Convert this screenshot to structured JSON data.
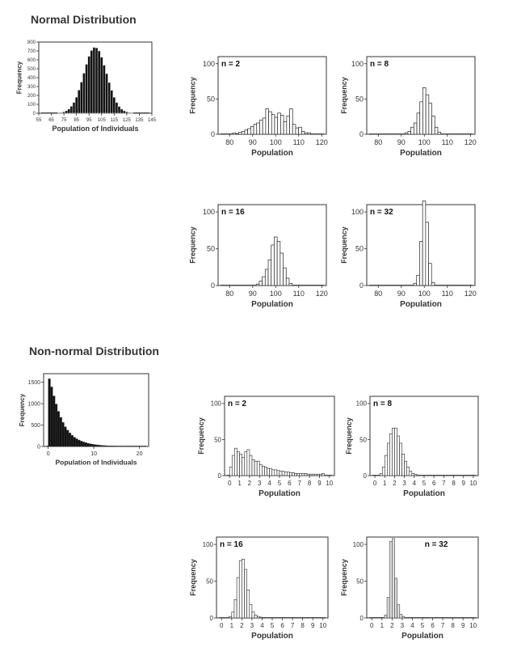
{
  "sections": {
    "normal": {
      "title": "Normal Distribution"
    },
    "nonnormal": {
      "title": "Non-normal Distribution"
    }
  },
  "chart_data": [
    {
      "id": "normal-population",
      "type": "bar",
      "title": "",
      "xlabel": "Population of Individuals",
      "ylabel": "Frequency",
      "xlim": [
        55,
        145
      ],
      "ylim": [
        0,
        800
      ],
      "xticks": [
        55,
        65,
        75,
        85,
        95,
        105,
        115,
        125,
        135,
        145
      ],
      "yticks": [
        0,
        100,
        200,
        300,
        400,
        500,
        600,
        700,
        800
      ],
      "bin_width": 2,
      "x": [
        71,
        73,
        75,
        77,
        79,
        81,
        83,
        85,
        87,
        89,
        91,
        93,
        95,
        97,
        99,
        101,
        103,
        105,
        107,
        109,
        111,
        113,
        115,
        117,
        119,
        121,
        123,
        125,
        127,
        129
      ],
      "values": [
        4,
        8,
        15,
        28,
        48,
        78,
        120,
        180,
        260,
        350,
        450,
        550,
        640,
        705,
        740,
        735,
        700,
        630,
        540,
        445,
        345,
        258,
        180,
        120,
        76,
        46,
        27,
        15,
        8,
        4
      ]
    },
    {
      "id": "normal-n2",
      "type": "bar",
      "title": "n = 2",
      "xlabel": "Population",
      "ylabel": "Frequency",
      "xlim": [
        75,
        122
      ],
      "ylim": [
        0,
        110
      ],
      "xticks": [
        80,
        90,
        100,
        110,
        120
      ],
      "yticks": [
        0,
        50,
        100
      ],
      "bin_width": 1.3,
      "x": [
        82,
        83.3,
        84.6,
        85.9,
        87.2,
        88.5,
        89.8,
        91.1,
        92.4,
        93.7,
        95,
        96.3,
        97.6,
        98.9,
        100.2,
        101.5,
        102.8,
        104.1,
        105.4,
        106.7,
        108,
        109.3,
        110.6,
        111.9,
        113.2,
        114.5
      ],
      "values": [
        2,
        1,
        3,
        4,
        6,
        8,
        11,
        14,
        16,
        20,
        23,
        36,
        32,
        28,
        24,
        30,
        27,
        18,
        26,
        36,
        14,
        9,
        10,
        4,
        2,
        2
      ]
    },
    {
      "id": "normal-n8",
      "type": "bar",
      "title": "n = 8",
      "xlabel": "Population",
      "ylabel": "Frequency",
      "xlim": [
        75,
        122
      ],
      "ylim": [
        0,
        110
      ],
      "xticks": [
        80,
        90,
        100,
        110,
        120
      ],
      "yticks": [
        0,
        50,
        100
      ],
      "bin_width": 1.3,
      "x": [
        92.2,
        93.5,
        94.8,
        96.1,
        97.4,
        98.7,
        100,
        101.3,
        102.6,
        103.9,
        105.2,
        106.5
      ],
      "values": [
        2,
        4,
        10,
        16,
        30,
        46,
        66,
        56,
        44,
        26,
        10,
        3
      ]
    },
    {
      "id": "normal-n16",
      "type": "bar",
      "title": "n = 16",
      "xlabel": "Population",
      "ylabel": "Frequency",
      "xlim": [
        75,
        122
      ],
      "ylim": [
        0,
        110
      ],
      "xticks": [
        80,
        90,
        100,
        110,
        120
      ],
      "yticks": [
        0,
        50,
        100
      ],
      "bin_width": 1.3,
      "x": [
        92.2,
        93.5,
        94.8,
        96.1,
        97.4,
        98.7,
        100,
        101.3,
        102.6,
        103.9,
        105.2,
        106.5
      ],
      "values": [
        2,
        6,
        12,
        22,
        35,
        55,
        66,
        60,
        44,
        24,
        10,
        3
      ]
    },
    {
      "id": "normal-n32",
      "type": "bar",
      "title": "n = 32",
      "xlabel": "Population",
      "ylabel": "Frequency",
      "xlim": [
        75,
        122
      ],
      "ylim": [
        0,
        110
      ],
      "xticks": [
        80,
        90,
        100,
        110,
        120
      ],
      "yticks": [
        0,
        50,
        100
      ],
      "bin_width": 1.3,
      "x": [
        96,
        97.3,
        98.6,
        99.9,
        101.2,
        102.5,
        103.8
      ],
      "values": [
        3,
        14,
        60,
        115,
        86,
        30,
        4
      ]
    },
    {
      "id": "nonnormal-population",
      "type": "bar",
      "title": "",
      "xlabel": "Population of Individuals",
      "ylabel": "Frequency",
      "xlim": [
        -1,
        22
      ],
      "ylim": [
        0,
        1700
      ],
      "xticks": [
        0,
        10,
        20
      ],
      "yticks": [
        0,
        500,
        1000,
        1500
      ],
      "bin_width": 0.5,
      "x": [
        0.25,
        0.75,
        1.25,
        1.75,
        2.25,
        2.75,
        3.25,
        3.75,
        4.25,
        4.75,
        5.25,
        5.75,
        6.25,
        6.75,
        7.25,
        7.75,
        8.25,
        8.75,
        9.25,
        9.75,
        10.25,
        10.75,
        11.25,
        11.75,
        12.25,
        12.75,
        13.25,
        13.75,
        14.25,
        14.75,
        15.25,
        15.75,
        16.25,
        16.75
      ],
      "values": [
        1580,
        1390,
        1180,
        990,
        820,
        680,
        560,
        460,
        380,
        315,
        260,
        215,
        180,
        150,
        125,
        105,
        88,
        74,
        62,
        52,
        44,
        37,
        31,
        26,
        22,
        18,
        15,
        13,
        11,
        9,
        8,
        7,
        6,
        5
      ]
    },
    {
      "id": "nonnormal-n2",
      "type": "bar",
      "title": "n = 2",
      "xlabel": "Population",
      "ylabel": "Frequency",
      "xlim": [
        -0.5,
        10.5
      ],
      "ylim": [
        0,
        110
      ],
      "xticks": [
        0,
        1,
        2,
        3,
        4,
        5,
        6,
        7,
        8,
        9,
        10
      ],
      "yticks": [
        0,
        50,
        100
      ],
      "bin_width": 0.25,
      "x": [
        0.125,
        0.375,
        0.625,
        0.875,
        1.125,
        1.375,
        1.625,
        1.875,
        2.125,
        2.375,
        2.625,
        2.875,
        3.125,
        3.375,
        3.625,
        3.875,
        4.125,
        4.375,
        4.625,
        4.875,
        5.125,
        5.375,
        5.625,
        5.875,
        6.125,
        6.375,
        6.625,
        6.875,
        7.125,
        7.375,
        7.625,
        7.875,
        8.125,
        8.375,
        8.625,
        8.875,
        9.125,
        9.375
      ],
      "values": [
        12,
        28,
        38,
        33,
        30,
        25,
        33,
        36,
        28,
        22,
        20,
        20,
        15,
        13,
        12,
        10,
        10,
        8,
        8,
        7,
        6,
        6,
        5,
        5,
        4,
        4,
        3,
        3,
        3,
        3,
        3,
        2,
        2,
        2,
        2,
        2,
        2,
        3
      ]
    },
    {
      "id": "nonnormal-n8",
      "type": "bar",
      "title": "n = 8",
      "xlabel": "Population",
      "ylabel": "Frequency",
      "xlim": [
        -0.5,
        10.5
      ],
      "ylim": [
        0,
        110
      ],
      "xticks": [
        0,
        1,
        2,
        3,
        4,
        5,
        6,
        7,
        8,
        9,
        10
      ],
      "yticks": [
        0,
        50,
        100
      ],
      "bin_width": 0.25,
      "x": [
        0.625,
        0.875,
        1.125,
        1.375,
        1.625,
        1.875,
        2.125,
        2.375,
        2.625,
        2.875,
        3.125,
        3.375,
        3.625,
        3.875,
        4.125
      ],
      "values": [
        3,
        12,
        28,
        45,
        58,
        66,
        66,
        55,
        45,
        30,
        20,
        12,
        6,
        3,
        2
      ]
    },
    {
      "id": "nonnormal-n16",
      "type": "bar",
      "title": "n = 16",
      "xlabel": "Population",
      "ylabel": "Frequency",
      "xlim": [
        -0.5,
        10.5
      ],
      "ylim": [
        0,
        110
      ],
      "xticks": [
        0,
        1,
        2,
        3,
        4,
        5,
        6,
        7,
        8,
        9,
        10
      ],
      "yticks": [
        0,
        50,
        100
      ],
      "bin_width": 0.25,
      "x": [
        0.875,
        1.125,
        1.375,
        1.625,
        1.875,
        2.125,
        2.375,
        2.625,
        2.875,
        3.125,
        3.375,
        3.625,
        3.875
      ],
      "values": [
        2,
        8,
        25,
        55,
        78,
        80,
        66,
        38,
        18,
        8,
        4,
        2,
        1
      ]
    },
    {
      "id": "nonnormal-n32",
      "type": "bar",
      "title": "n = 32",
      "xlabel": "Population",
      "ylabel": "Frequency",
      "xlim": [
        -0.5,
        10.5
      ],
      "ylim": [
        0,
        110
      ],
      "xticks": [
        0,
        1,
        2,
        3,
        4,
        5,
        6,
        7,
        8,
        9,
        10
      ],
      "yticks": [
        0,
        50,
        100
      ],
      "bin_width": 0.25,
      "x": [
        1.375,
        1.625,
        1.875,
        2.125,
        2.375,
        2.625,
        2.875,
        3.125
      ],
      "values": [
        4,
        28,
        104,
        108,
        54,
        18,
        5,
        2
      ]
    }
  ]
}
